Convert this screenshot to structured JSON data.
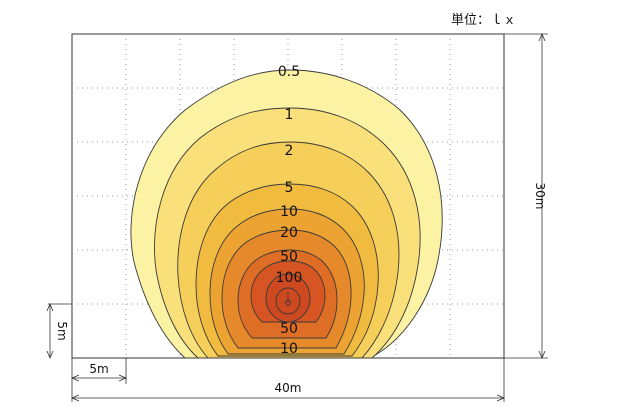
{
  "unit_label": "単位：ｌｘ",
  "iso_labels": [
    "0.5",
    "1",
    "2",
    "5",
    "10",
    "20",
    "50",
    "100",
    "50",
    "10"
  ],
  "dimensions": {
    "height": "30m",
    "width": "40m",
    "grid_step_h": "5m",
    "grid_step_v": "5m"
  },
  "colors": {
    "0.5": "#FCF2A3",
    "1": "#F9E07A",
    "2": "#F5CF5A",
    "5": "#F1BB40",
    "10": "#ECA332",
    "20": "#E6892A",
    "50": "#DE6D25",
    "100": "#D65522",
    "max": "#CE4920"
  }
}
